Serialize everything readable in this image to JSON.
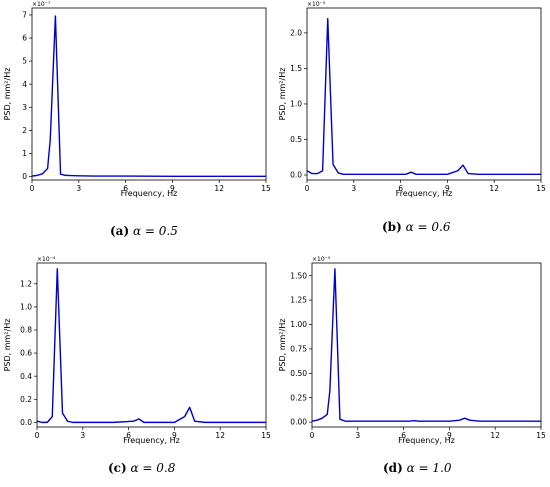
{
  "chart_data": [
    {
      "type": "line",
      "caption": {
        "label": "(a)",
        "text": "α = 0.5"
      },
      "xlabel": "Frequency, Hz",
      "ylabel": "PSD, mm²/Hz",
      "multiplier": "×10⁻⁷",
      "xlim": [
        0,
        15
      ],
      "ylim": [
        -0.15,
        7.3
      ],
      "xticks": [
        0,
        3,
        6,
        9,
        12,
        15
      ],
      "yticks": [
        0,
        1,
        2,
        3,
        4,
        5,
        6,
        7
      ],
      "ytick_labels": [
        "0",
        "1",
        "2",
        "3",
        "4",
        "5",
        "6",
        "7"
      ],
      "series": [
        {
          "color": "#0000cc",
          "x": [
            0,
            0.33,
            0.67,
            1.0,
            1.17,
            1.5,
            1.83,
            2.17,
            2.5,
            3.0,
            4.0,
            6.0,
            9.0,
            12.0,
            15.0
          ],
          "y": [
            0.02,
            0.05,
            0.12,
            0.35,
            1.6,
            6.95,
            0.1,
            0.05,
            0.04,
            0.03,
            0.02,
            0.02,
            0.01,
            0.01,
            0.01
          ]
        }
      ]
    },
    {
      "type": "line",
      "caption": {
        "label": "(b)",
        "text": "α = 0.6"
      },
      "xlabel": "Frequency, Hz",
      "ylabel": "PSD, mm²/Hz",
      "multiplier": "×10⁻⁵",
      "xlim": [
        0,
        15
      ],
      "ylim": [
        -0.07,
        2.35
      ],
      "xticks": [
        0,
        3,
        6,
        9,
        12,
        15
      ],
      "yticks": [
        0,
        0.5,
        1.0,
        1.5,
        2.0
      ],
      "ytick_labels": [
        "0.0",
        "0.5",
        "1.0",
        "1.5",
        "2.0"
      ],
      "series": [
        {
          "color": "#0000cc",
          "x": [
            0,
            0.33,
            0.67,
            1.0,
            1.33,
            1.67,
            2.0,
            2.33,
            3.0,
            5.0,
            6.33,
            6.67,
            7.0,
            8.0,
            9.0,
            9.67,
            10.0,
            10.33,
            11.0,
            13.0,
            15.0
          ],
          "y": [
            0.06,
            0.02,
            0.02,
            0.06,
            2.2,
            0.15,
            0.03,
            0.01,
            0.01,
            0.01,
            0.01,
            0.04,
            0.01,
            0.01,
            0.01,
            0.06,
            0.14,
            0.02,
            0.01,
            0.01,
            0.01
          ]
        }
      ]
    },
    {
      "type": "line",
      "caption": {
        "label": "(c)",
        "text": "α = 0.8"
      },
      "xlabel": "Frequency, Hz",
      "ylabel": "PSD, mm²/Hz",
      "multiplier": "×10⁻⁴",
      "xlim": [
        0,
        15
      ],
      "ylim": [
        -0.04,
        1.38
      ],
      "xticks": [
        0,
        3,
        6,
        9,
        12,
        15
      ],
      "yticks": [
        0,
        0.2,
        0.4,
        0.6,
        0.8,
        1.0,
        1.2
      ],
      "ytick_labels": [
        "0.0",
        "0.2",
        "0.4",
        "0.6",
        "0.8",
        "1.0",
        "1.2"
      ],
      "series": [
        {
          "color": "#0000cc",
          "x": [
            0,
            0.33,
            0.67,
            1.0,
            1.33,
            1.67,
            2.0,
            2.33,
            3.0,
            5.0,
            6.33,
            6.67,
            7.0,
            8.0,
            9.0,
            9.67,
            10.0,
            10.33,
            11.0,
            13.0,
            15.0
          ],
          "y": [
            0.01,
            0.0,
            0.0,
            0.05,
            1.33,
            0.08,
            0.01,
            0.0,
            0.0,
            0.0,
            0.01,
            0.03,
            0.0,
            0.0,
            0.0,
            0.05,
            0.13,
            0.01,
            0.0,
            0.0,
            0.0
          ]
        }
      ]
    },
    {
      "type": "line",
      "caption": {
        "label": "(d)",
        "text": "α = 1.0"
      },
      "xlabel": "Frequency, Hz",
      "ylabel": "PSD, mm²/Hz",
      "multiplier": "×10⁻⁵",
      "xlim": [
        0,
        15
      ],
      "ylim": [
        -0.05,
        1.63
      ],
      "xticks": [
        0,
        3,
        6,
        9,
        12,
        15
      ],
      "yticks": [
        0,
        0.25,
        0.5,
        0.75,
        1.0,
        1.25,
        1.5
      ],
      "ytick_labels": [
        "0.00",
        "0.25",
        "0.50",
        "0.75",
        "1.00",
        "1.25",
        "1.50"
      ],
      "series": [
        {
          "color": "#0000cc",
          "x": [
            0,
            0.33,
            0.67,
            1.0,
            1.17,
            1.5,
            1.83,
            2.17,
            3.0,
            5.0,
            6.33,
            6.67,
            7.0,
            8.0,
            9.0,
            9.67,
            10.0,
            10.33,
            11.0,
            13.0,
            15.0
          ],
          "y": [
            0.01,
            0.02,
            0.04,
            0.08,
            0.32,
            1.57,
            0.03,
            0.01,
            0.01,
            0.01,
            0.01,
            0.015,
            0.01,
            0.01,
            0.01,
            0.02,
            0.04,
            0.02,
            0.01,
            0.01,
            0.01
          ]
        }
      ]
    }
  ]
}
